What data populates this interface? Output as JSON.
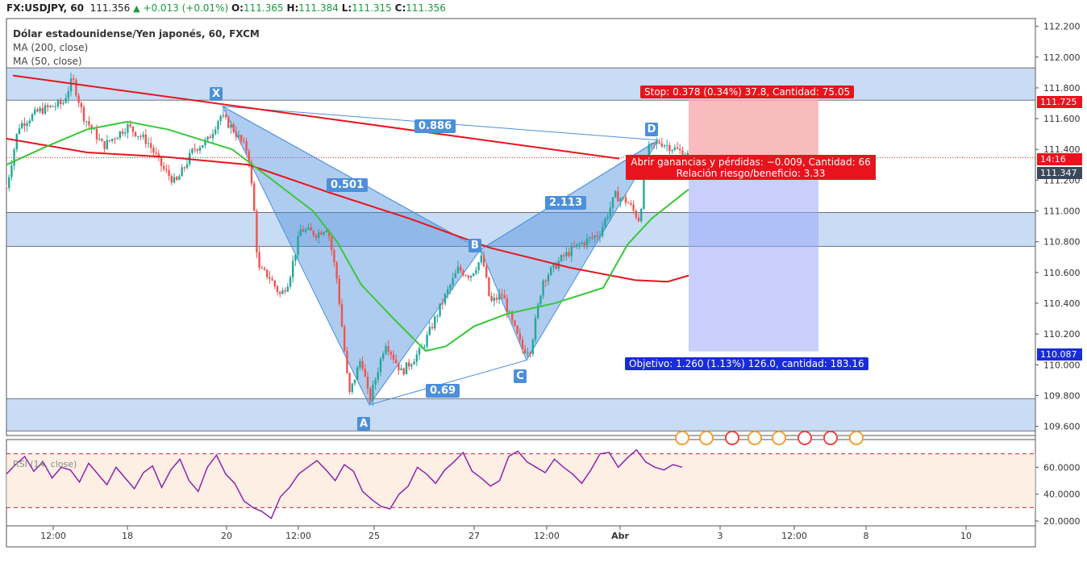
{
  "header": {
    "symbol": "FX:USDJPY, 60",
    "last": "111.356",
    "change": "+0.013 (+0.01%)",
    "o_label": "O:",
    "o": "111.365",
    "h_label": "H:",
    "h": "111.384",
    "l_label": "L:",
    "l": "111.315",
    "c_label": "C:",
    "c": "111.356"
  },
  "legend": {
    "title": "Dólar estadounidense/Yen japonés, 60, FXCM",
    "ma200": "MA (200, close)",
    "ma50": "MA (50, close)",
    "rsi": "RSI (14, close)"
  },
  "price_tags": {
    "stop_price": "111.725",
    "countdown": "14:16",
    "current": "111.347",
    "target_price": "110.087"
  },
  "annotations": {
    "stop": "Stop: 0.378 (0.34%) 37.8, Cantidad: 75.05",
    "pl_line1": "Abrir ganancias y pérdidas: −0.009, Cantidad: 66",
    "pl_line2": "Relación riesgo/beneficio: 3.33",
    "target": "Objetivo: 1.260 (1.13%) 126.0, cantidad: 183.16"
  },
  "pattern": {
    "points": [
      "X",
      "A",
      "B",
      "C",
      "D"
    ],
    "ratios": {
      "xb": "0.501",
      "ac": "0.69",
      "bd": "2.113",
      "xd": "0.886"
    }
  },
  "colors": {
    "bull": "#26a69a",
    "bear": "#ef5350",
    "ma200": "#e8141d",
    "ma50": "#37c837",
    "rsi": "#8e24aa",
    "zone": "#b6d0f3",
    "pattern": "#4c8fdc"
  },
  "chart_data": {
    "type": "candlestick",
    "title": "Dólar estadounidense/Yen japonés, 60, FXCM",
    "y_ticks": [
      "112.200",
      "112.000",
      "111.800",
      "111.600",
      "111.400",
      "111.200",
      "111.000",
      "110.800",
      "110.600",
      "110.400",
      "110.200",
      "110.000",
      "109.800",
      "109.600"
    ],
    "x_ticks": [
      "12:00",
      "18",
      "20",
      "12:00",
      "25",
      "27",
      "12:00",
      "Abr",
      "3",
      "12:00",
      "8",
      "10"
    ],
    "ylim": [
      109.54,
      112.24
    ],
    "price_path": [
      [
        0,
        111.15
      ],
      [
        15,
        111.55
      ],
      [
        40,
        111.65
      ],
      [
        70,
        111.7
      ],
      [
        82,
        111.86
      ],
      [
        95,
        111.62
      ],
      [
        120,
        111.42
      ],
      [
        150,
        111.55
      ],
      [
        175,
        111.45
      ],
      [
        195,
        111.27
      ],
      [
        210,
        111.18
      ],
      [
        232,
        111.4
      ],
      [
        250,
        111.46
      ],
      [
        265,
        111.62
      ],
      [
        280,
        111.54
      ],
      [
        300,
        111.38
      ],
      [
        308,
        110.95
      ],
      [
        312,
        110.62
      ],
      [
        325,
        110.58
      ],
      [
        340,
        110.45
      ],
      [
        350,
        110.55
      ],
      [
        365,
        110.88
      ],
      [
        385,
        110.85
      ],
      [
        398,
        110.9
      ],
      [
        410,
        110.55
      ],
      [
        425,
        109.8
      ],
      [
        440,
        110.05
      ],
      [
        450,
        109.76
      ],
      [
        470,
        110.15
      ],
      [
        490,
        109.95
      ],
      [
        515,
        110.1
      ],
      [
        540,
        110.4
      ],
      [
        560,
        110.62
      ],
      [
        575,
        110.58
      ],
      [
        590,
        110.7
      ],
      [
        600,
        110.4
      ],
      [
        615,
        110.46
      ],
      [
        625,
        110.3
      ],
      [
        640,
        110.1
      ],
      [
        650,
        110.1
      ],
      [
        665,
        110.55
      ],
      [
        690,
        110.7
      ],
      [
        710,
        110.78
      ],
      [
        735,
        110.85
      ],
      [
        755,
        111.1
      ],
      [
        770,
        111.06
      ],
      [
        785,
        110.94
      ],
      [
        795,
        111.4
      ],
      [
        810,
        111.45
      ],
      [
        830,
        111.4
      ],
      [
        845,
        111.36
      ]
    ],
    "ma200": [
      [
        0,
        111.47
      ],
      [
        100,
        111.38
      ],
      [
        200,
        111.35
      ],
      [
        300,
        111.3
      ],
      [
        400,
        111.12
      ],
      [
        500,
        110.95
      ],
      [
        600,
        110.76
      ],
      [
        700,
        110.63
      ],
      [
        780,
        110.55
      ],
      [
        820,
        110.54
      ],
      [
        846,
        110.58
      ]
    ],
    "ma50": [
      [
        0,
        111.3
      ],
      [
        50,
        111.42
      ],
      [
        100,
        111.53
      ],
      [
        150,
        111.58
      ],
      [
        200,
        111.53
      ],
      [
        280,
        111.4
      ],
      [
        330,
        111.2
      ],
      [
        380,
        111.0
      ],
      [
        410,
        110.8
      ],
      [
        440,
        110.52
      ],
      [
        480,
        110.3
      ],
      [
        520,
        110.09
      ],
      [
        545,
        110.12
      ],
      [
        580,
        110.25
      ],
      [
        620,
        110.33
      ],
      [
        680,
        110.4
      ],
      [
        740,
        110.5
      ],
      [
        770,
        110.78
      ],
      [
        800,
        110.95
      ],
      [
        846,
        111.14
      ]
    ],
    "trendline": [
      [
        8,
        111.88
      ],
      [
        760,
        111.34
      ]
    ],
    "xabcd": {
      "X": [
        268,
        111.68
      ],
      "A": [
        450,
        109.74
      ],
      "B": [
        588,
        110.75
      ],
      "C": [
        645,
        110.03
      ],
      "D": [
        808,
        111.46
      ]
    },
    "zones": [
      [
        111.72,
        111.93
      ],
      [
        110.77,
        110.99
      ],
      [
        109.57,
        109.78
      ]
    ],
    "position": {
      "entry": 111.347,
      "stop": 111.725,
      "target": 110.087,
      "x_start": 846,
      "x_end": 1007
    },
    "rsi": {
      "ylim": [
        17,
        80
      ],
      "levels": [
        70,
        30
      ],
      "ticks": [
        "60.0000",
        "40.0000",
        "20.0000"
      ],
      "values": [
        55,
        62,
        68,
        57,
        64,
        52,
        60,
        58,
        49,
        63,
        55,
        47,
        60,
        52,
        44,
        56,
        61,
        45,
        58,
        66,
        50,
        42,
        60,
        69,
        55,
        48,
        35,
        30,
        27,
        22,
        38,
        45,
        55,
        60,
        65,
        58,
        50,
        62,
        57,
        42,
        36,
        31,
        29,
        40,
        46,
        60,
        55,
        48,
        58,
        64,
        71,
        57,
        52,
        46,
        50,
        68,
        72,
        64,
        60,
        56,
        66,
        60,
        55,
        48,
        58,
        70,
        71,
        60,
        67,
        73,
        64,
        60,
        58,
        62,
        60
      ]
    }
  }
}
